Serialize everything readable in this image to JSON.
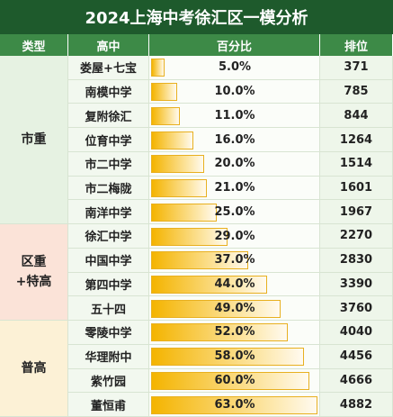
{
  "title": "2024上海中考徐汇区一模分析",
  "table": {
    "header": [
      "类型",
      "高中",
      "百分比",
      "排位"
    ],
    "groups": [
      {
        "type": "市重",
        "color": "#e6f2e2",
        "rows": [
          {
            "school": "娄屋+七宝",
            "percent": "5.0%",
            "rank": 371
          },
          {
            "school": "南模中学",
            "percent": "10.0%",
            "rank": 785
          },
          {
            "school": "复附徐汇",
            "percent": "11.0%",
            "rank": 844
          },
          {
            "school": "位育中学",
            "percent": "16.0%",
            "rank": 1264
          },
          {
            "school": "市二中学",
            "percent": "20.0%",
            "rank": 1514
          },
          {
            "school": "市二梅陇",
            "percent": "21.0%",
            "rank": 1601
          },
          {
            "school": "南洋中学",
            "percent": "25.0%",
            "rank": 1967
          }
        ]
      },
      {
        "type": "区重\n+特高",
        "color": "#fbe3d8",
        "rows": [
          {
            "school": "徐汇中学",
            "percent": "29.0%",
            "rank": 2270
          },
          {
            "school": "中国中学",
            "percent": "37.0%",
            "rank": 2830
          },
          {
            "school": "第四中学",
            "percent": "44.0%",
            "rank": 3390
          },
          {
            "school": "五十四",
            "percent": "49.0%",
            "rank": 3760
          }
        ]
      },
      {
        "type": "普高",
        "color": "#fcf1d6",
        "rows": [
          {
            "school": "零陵中学",
            "percent": "52.0%",
            "rank": 4040
          },
          {
            "school": "华理附中",
            "percent": "58.0%",
            "rank": 4456
          },
          {
            "school": "紫竹园",
            "percent": "60.0%",
            "rank": 4666
          },
          {
            "school": "董恒甫",
            "percent": "63.0%",
            "rank": 4882
          }
        ]
      }
    ]
  }
}
